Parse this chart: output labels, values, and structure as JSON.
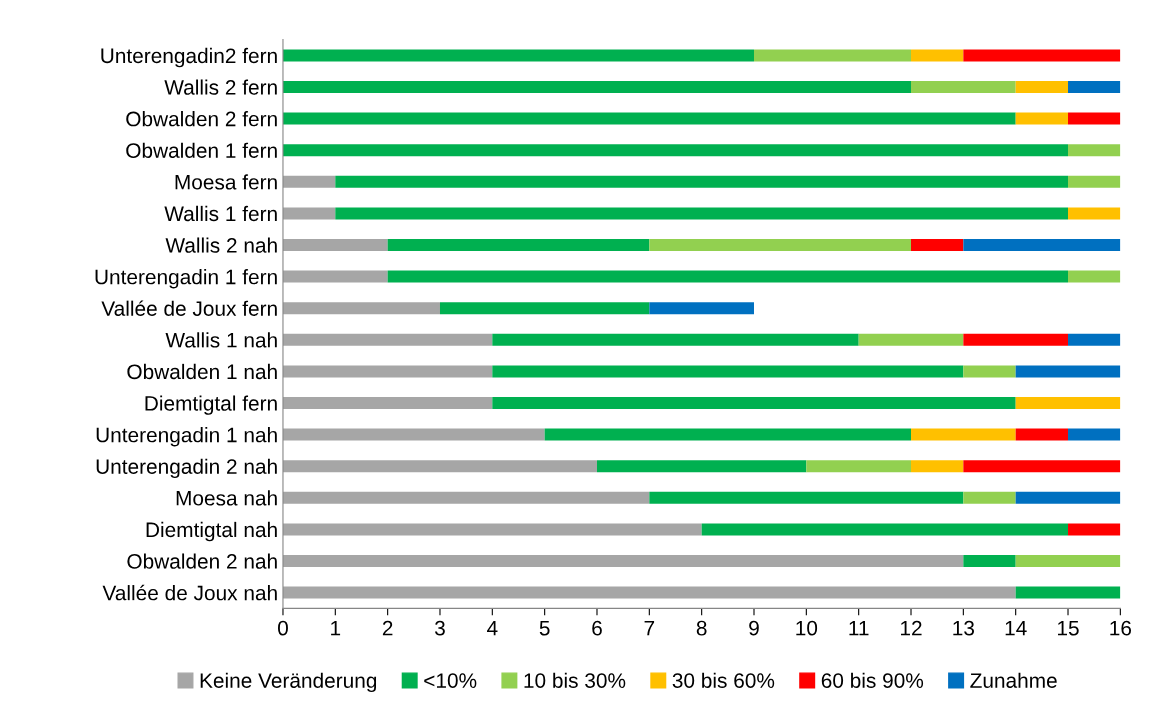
{
  "chart_data": {
    "type": "bar",
    "orientation": "horizontal",
    "stacked": true,
    "legend": "bottom",
    "grid": false,
    "categories": [
      "Unterengadin2 fern",
      "Wallis 2 fern",
      "Obwalden 2 fern",
      "Obwalden 1 fern",
      "Moesa fern",
      "Wallis 1 fern",
      "Wallis 2 nah",
      "Unterengadin 1 fern",
      "Vallée de Joux fern",
      "Wallis 1 nah",
      "Obwalden 1 nah",
      "Diemtigtal fern",
      "Unterengadin 1 nah",
      "Unterengadin 2 nah",
      "Moesa nah",
      "Diemtigtal nah",
      "Obwalden 2 nah",
      "Vallée de Joux nah"
    ],
    "xlim": [
      0,
      16
    ],
    "xticks": [
      0,
      1,
      2,
      3,
      4,
      5,
      6,
      7,
      8,
      9,
      10,
      11,
      12,
      13,
      14,
      15,
      16
    ],
    "series": [
      {
        "name": "Keine Veränderung",
        "color": "#a6a6a6",
        "values": [
          0,
          0,
          0,
          0,
          1,
          1,
          2,
          2,
          3,
          4,
          4,
          4,
          5,
          6,
          7,
          8,
          13,
          14
        ]
      },
      {
        "name": "<10%",
        "color": "#00b050",
        "values": [
          9,
          12,
          14,
          15,
          14,
          14,
          5,
          13,
          4,
          7,
          9,
          10,
          7,
          4,
          6,
          7,
          1,
          2
        ]
      },
      {
        "name": "10 bis 30%",
        "color": "#92d050",
        "values": [
          3,
          2,
          0,
          1,
          1,
          0,
          5,
          1,
          0,
          2,
          1,
          0,
          0,
          2,
          1,
          0,
          2,
          0
        ]
      },
      {
        "name": "30 bis 60%",
        "color": "#ffc000",
        "values": [
          1,
          1,
          1,
          0,
          0,
          1,
          0,
          0,
          0,
          0,
          0,
          2,
          2,
          1,
          0,
          0,
          0,
          0
        ]
      },
      {
        "name": "60 bis 90%",
        "color": "#ff0000",
        "values": [
          3,
          0,
          1,
          0,
          0,
          0,
          1,
          0,
          0,
          2,
          0,
          0,
          1,
          3,
          0,
          1,
          0,
          0
        ]
      },
      {
        "name": "Zunahme",
        "color": "#0070c0",
        "values": [
          0,
          1,
          0,
          0,
          0,
          0,
          3,
          0,
          2,
          1,
          2,
          0,
          1,
          0,
          2,
          0,
          0,
          0
        ]
      }
    ]
  }
}
